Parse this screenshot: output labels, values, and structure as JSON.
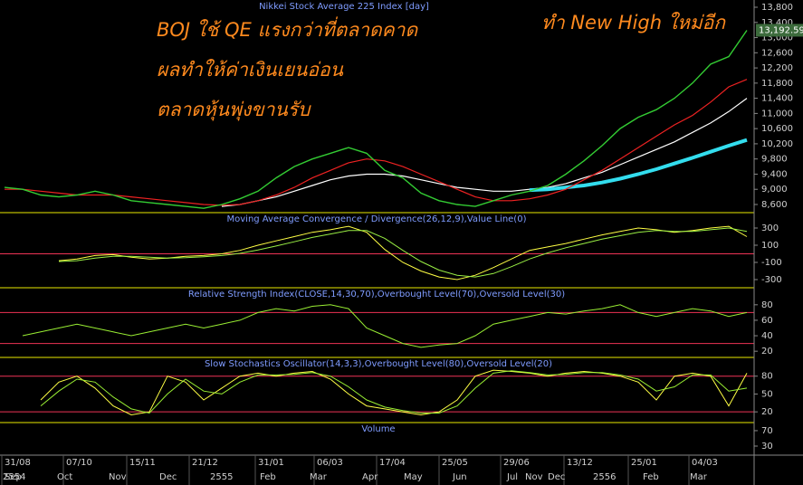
{
  "chart_data": [
    {
      "type": "line",
      "title": "Nikkei Stock Average 225 Index [day]",
      "annotations": [
        "BOJ ใช้ QE แรงกว่าที่ตลาดคาด",
        "ผลทำให้ค่าเงินเยนอ่อน",
        "ตลาดหุ้นพุ่งขานรับ",
        "ทำ New High ใหม่อีก"
      ],
      "ylim": [
        8385,
        13991
      ],
      "yticks": [
        {
          "value": 8600,
          "label": "8,600"
        },
        {
          "value": 9000,
          "label": "9,000"
        },
        {
          "value": 9400,
          "label": "9,400"
        },
        {
          "value": 9800,
          "label": "9,800"
        },
        {
          "value": 10200,
          "label": "10,200"
        },
        {
          "value": 10600,
          "label": "10,600"
        },
        {
          "value": 11000,
          "label": "11,000"
        },
        {
          "value": 11400,
          "label": "11,400"
        },
        {
          "value": 11800,
          "label": "11,800"
        },
        {
          "value": 12200,
          "label": "12,200"
        },
        {
          "value": 12600,
          "label": "12,600"
        },
        {
          "value": 13000,
          "label": "13,000"
        },
        {
          "value": 13400,
          "label": "13,400"
        },
        {
          "value": 13800,
          "label": "13,800"
        }
      ],
      "last_price": {
        "value": 13192.59,
        "label": "13,192.59"
      },
      "series": [
        {
          "color": "#ffffff",
          "width": 1.2,
          "values": [
            null,
            null,
            null,
            null,
            null,
            null,
            null,
            null,
            null,
            null,
            null,
            null,
            8550,
            8600,
            8700,
            8800,
            8950,
            9100,
            9250,
            9350,
            9400,
            9400,
            9350,
            9250,
            9150,
            9050,
            9000,
            8950,
            8950,
            9000,
            9050,
            9150,
            9300,
            9450,
            9650,
            9850,
            10050,
            10250,
            10500,
            10750,
            11050,
            11400
          ]
        },
        {
          "color": "#33ddee",
          "width": 4,
          "values": [
            null,
            null,
            null,
            null,
            null,
            null,
            null,
            null,
            null,
            null,
            null,
            null,
            null,
            null,
            null,
            null,
            null,
            null,
            null,
            null,
            null,
            null,
            null,
            null,
            null,
            null,
            null,
            null,
            null,
            8980,
            9000,
            9050,
            9100,
            9180,
            9280,
            9400,
            9530,
            9680,
            9830,
            9990,
            10150,
            10300
          ]
        },
        {
          "color": "#ee2222",
          "width": 1.2,
          "values": [
            9000,
            9000,
            8950,
            8900,
            8850,
            8850,
            8850,
            8800,
            8750,
            8700,
            8650,
            8600,
            8580,
            8600,
            8700,
            8850,
            9050,
            9300,
            9500,
            9700,
            9800,
            9750,
            9600,
            9400,
            9200,
            9000,
            8800,
            8700,
            8700,
            8750,
            8850,
            9000,
            9250,
            9500,
            9800,
            10100,
            10400,
            10700,
            10950,
            11300,
            11700,
            11900
          ]
        },
        {
          "color": "#33cc33",
          "width": 1.4,
          "values": [
            9050,
            9000,
            8850,
            8800,
            8850,
            8950,
            8850,
            8700,
            8650,
            8600,
            8550,
            8500,
            8600,
            8750,
            8950,
            9300,
            9600,
            9800,
            9950,
            10100,
            9950,
            9500,
            9300,
            8900,
            8700,
            8600,
            8550,
            8700,
            8850,
            8950,
            9100,
            9400,
            9750,
            10150,
            10600,
            10900,
            11100,
            11400,
            11800,
            12300,
            12500,
            13192.59
          ]
        }
      ]
    },
    {
      "type": "line",
      "title": "Moving Average Convergence / Divergence(26,12,9),Value Line(0)",
      "ylim": [
        -395,
        479
      ],
      "yticks": [
        -300,
        -100,
        100,
        300
      ],
      "levels": [
        0
      ],
      "series": [
        {
          "color": "#ffff44",
          "width": 1,
          "values": [
            null,
            null,
            null,
            -80,
            -60,
            -20,
            -10,
            -40,
            -60,
            -50,
            -30,
            -20,
            0,
            40,
            100,
            150,
            200,
            250,
            280,
            320,
            250,
            50,
            -100,
            -200,
            -270,
            -300,
            -250,
            -160,
            -60,
            40,
            80,
            120,
            170,
            220,
            260,
            300,
            280,
            250,
            270,
            300,
            320,
            200
          ]
        },
        {
          "color": "#99ee44",
          "width": 1,
          "values": [
            null,
            null,
            null,
            -90,
            -80,
            -50,
            -30,
            -30,
            -40,
            -50,
            -45,
            -35,
            -20,
            5,
            45,
            90,
            140,
            190,
            230,
            270,
            270,
            180,
            40,
            -90,
            -190,
            -250,
            -270,
            -230,
            -150,
            -60,
            10,
            70,
            120,
            170,
            210,
            250,
            270,
            260,
            260,
            280,
            300,
            260
          ]
        }
      ]
    },
    {
      "type": "line",
      "title": "Relative Strength Index(CLOSE,14,30,70),Overbought Level(70),Oversold Level(30)",
      "ylim": [
        12,
        102
      ],
      "yticks": [
        20,
        40,
        60,
        80
      ],
      "levels": [
        70,
        30
      ],
      "series": [
        {
          "color": "#99ee33",
          "width": 1,
          "values": [
            null,
            40,
            45,
            50,
            55,
            50,
            45,
            40,
            45,
            50,
            55,
            50,
            55,
            60,
            70,
            75,
            72,
            78,
            80,
            75,
            50,
            40,
            30,
            25,
            28,
            30,
            40,
            55,
            60,
            65,
            70,
            68,
            72,
            75,
            80,
            70,
            65,
            70,
            75,
            72,
            65,
            70
          ]
        }
      ]
    },
    {
      "type": "line",
      "title": "Slow Stochastics Oscillator(14,3,3),Overbought Level(80),Oversold Level(20)",
      "ylim": [
        2,
        111.5
      ],
      "yticks": [
        20,
        50,
        80
      ],
      "levels": [
        80,
        20
      ],
      "series": [
        {
          "color": "#ffff44",
          "width": 1,
          "values": [
            null,
            null,
            40,
            70,
            80,
            60,
            30,
            15,
            20,
            80,
            70,
            40,
            60,
            80,
            85,
            80,
            85,
            88,
            75,
            50,
            30,
            25,
            20,
            15,
            20,
            40,
            80,
            90,
            88,
            85,
            80,
            85,
            88,
            85,
            80,
            70,
            40,
            80,
            85,
            80,
            30,
            85
          ]
        },
        {
          "color": "#99ee33",
          "width": 1,
          "values": [
            null,
            null,
            30,
            55,
            75,
            70,
            45,
            25,
            18,
            50,
            75,
            55,
            50,
            70,
            82,
            82,
            83,
            86,
            80,
            62,
            40,
            28,
            22,
            18,
            18,
            30,
            60,
            85,
            89,
            86,
            82,
            83,
            86,
            86,
            82,
            75,
            55,
            62,
            82,
            82,
            55,
            60
          ]
        }
      ]
    },
    {
      "type": "line",
      "title": "Volume",
      "ylim": [
        6.5,
        91
      ],
      "yticks": [
        30,
        70
      ],
      "series": []
    }
  ],
  "x_axis": {
    "dates": [
      "31/08",
      "07/10",
      "15/11",
      "21/12",
      "31/01",
      "06/03",
      "17/04",
      "25/05",
      "29/06",
      "13/12",
      "25/01",
      "04/03"
    ],
    "months": [
      "2554",
      "Sep",
      "Oct",
      "Nov",
      "Dec",
      "2555",
      "Feb",
      "Mar",
      "Apr",
      "May",
      "Jun",
      "Jul",
      "Nov",
      "Dec",
      "2556",
      "Feb",
      "Mar"
    ]
  }
}
